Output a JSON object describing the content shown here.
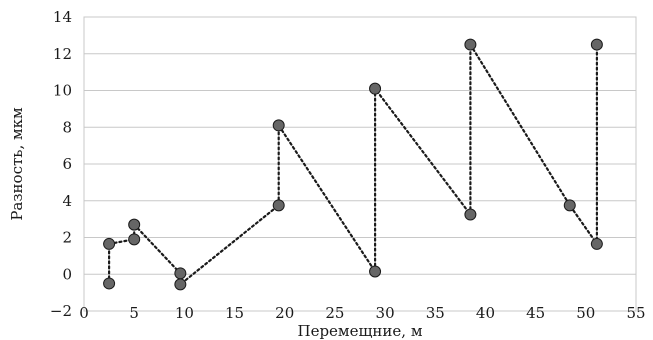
{
  "chart_data": {
    "type": "scatter",
    "title": "",
    "xlabel": "Перемещние, м",
    "ylabel": "Разность, мкм",
    "xlim": [
      0,
      55
    ],
    "ylim": [
      -2,
      14
    ],
    "xticks": [
      0,
      5,
      10,
      15,
      20,
      25,
      30,
      35,
      40,
      45,
      50,
      55
    ],
    "yticks": [
      -2,
      0,
      2,
      4,
      6,
      8,
      10,
      12,
      14
    ],
    "ytick_labels": [
      "−2",
      "0",
      "2",
      "4",
      "6",
      "8",
      "10",
      "12",
      "14"
    ],
    "grid": "horizontal",
    "legend": "none",
    "line_style": "dotted",
    "colors": {
      "marker_fill": "#666666",
      "line": "#1a1a1a",
      "grid": "#c8c8c8"
    },
    "series": [
      {
        "points": [
          {
            "x": 2.5,
            "y": -0.5
          },
          {
            "x": 2.5,
            "y": 1.65
          },
          {
            "x": 5.0,
            "y": 1.9
          },
          {
            "x": 5.0,
            "y": 2.7
          },
          {
            "x": 9.6,
            "y": 0.05
          },
          {
            "x": 9.6,
            "y": -0.55
          },
          {
            "x": 19.4,
            "y": 3.75
          },
          {
            "x": 19.4,
            "y": 8.1
          },
          {
            "x": 29.0,
            "y": 0.15
          },
          {
            "x": 29.0,
            "y": 10.1
          },
          {
            "x": 38.5,
            "y": 3.25
          },
          {
            "x": 38.5,
            "y": 12.5
          },
          {
            "x": 48.4,
            "y": 3.75
          },
          {
            "x": 51.1,
            "y": 1.65
          },
          {
            "x": 51.1,
            "y": 12.5
          }
        ]
      }
    ]
  }
}
